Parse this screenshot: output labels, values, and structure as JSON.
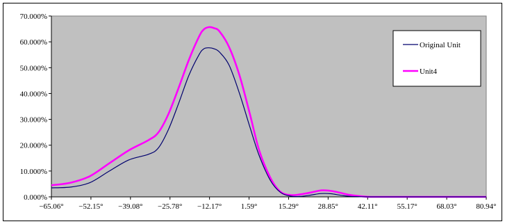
{
  "chart_data": {
    "type": "line",
    "title": "",
    "xlabel": "",
    "ylabel": "",
    "x_tick_labels": [
      "−65.06°",
      "−52.15°",
      "−39.08°",
      "−25.78°",
      "−12.17°",
      "1.59°",
      "15.29°",
      "28.85°",
      "42.11°",
      "55.17°",
      "68.03°",
      "80.94°"
    ],
    "y_tick_labels": [
      "0.000%",
      "10.000%",
      "20.000%",
      "30.000%",
      "40.000%",
      "50.000%",
      "60.000%",
      "70.000%"
    ],
    "y_ticks": [
      0,
      10,
      20,
      30,
      40,
      50,
      60,
      70
    ],
    "ylim": [
      0,
      70
    ],
    "plot_background": "#c0c0c0",
    "legend_position": "top-right",
    "series": [
      {
        "name": "Original Unit",
        "color": "#00006e",
        "points": [
          [
            -65.06,
            3.5
          ],
          [
            -58.6,
            3.8
          ],
          [
            -52.15,
            5.5
          ],
          [
            -45.6,
            10.0
          ],
          [
            -39.08,
            14.3
          ],
          [
            -32.4,
            16.5
          ],
          [
            -29.1,
            19.0
          ],
          [
            -25.78,
            26.0
          ],
          [
            -22.4,
            36.0
          ],
          [
            -18.9,
            47.0
          ],
          [
            -15.5,
            55.0
          ],
          [
            -13.9,
            57.3
          ],
          [
            -12.17,
            57.7
          ],
          [
            -10.4,
            57.3
          ],
          [
            -8.6,
            56.0
          ],
          [
            -5.4,
            51.0
          ],
          [
            -1.9,
            40.0
          ],
          [
            1.59,
            27.0
          ],
          [
            4.7,
            16.0
          ],
          [
            8.4,
            6.5
          ],
          [
            11.8,
            1.8
          ],
          [
            15.29,
            0.3
          ],
          [
            18.7,
            0.2
          ],
          [
            22.1,
            0.7
          ],
          [
            25.5,
            1.3
          ],
          [
            28.85,
            1.2
          ],
          [
            32.2,
            0.6
          ],
          [
            35.5,
            0.2
          ],
          [
            42.11,
            0.0
          ],
          [
            55.17,
            0.0
          ],
          [
            68.03,
            0.0
          ],
          [
            80.94,
            0.0
          ]
        ]
      },
      {
        "name": "Unit4",
        "color": "#ff00ff",
        "points": [
          [
            -65.06,
            4.5
          ],
          [
            -58.6,
            5.5
          ],
          [
            -52.15,
            8.0
          ],
          [
            -45.6,
            13.0
          ],
          [
            -39.08,
            18.0
          ],
          [
            -32.4,
            22.0
          ],
          [
            -29.1,
            25.0
          ],
          [
            -25.78,
            32.0
          ],
          [
            -22.4,
            42.0
          ],
          [
            -18.9,
            53.0
          ],
          [
            -15.5,
            62.0
          ],
          [
            -13.9,
            64.8
          ],
          [
            -12.17,
            65.7
          ],
          [
            -10.4,
            65.3
          ],
          [
            -8.6,
            64.0
          ],
          [
            -5.4,
            58.0
          ],
          [
            -1.9,
            47.0
          ],
          [
            1.59,
            32.0
          ],
          [
            4.7,
            18.0
          ],
          [
            8.4,
            7.5
          ],
          [
            11.8,
            2.0
          ],
          [
            15.29,
            0.7
          ],
          [
            18.7,
            1.0
          ],
          [
            22.1,
            1.7
          ],
          [
            25.5,
            2.5
          ],
          [
            28.85,
            2.3
          ],
          [
            32.2,
            1.5
          ],
          [
            35.5,
            0.7
          ],
          [
            42.11,
            0.0
          ],
          [
            55.17,
            0.0
          ],
          [
            68.03,
            0.0
          ],
          [
            80.94,
            0.0
          ]
        ]
      }
    ]
  }
}
